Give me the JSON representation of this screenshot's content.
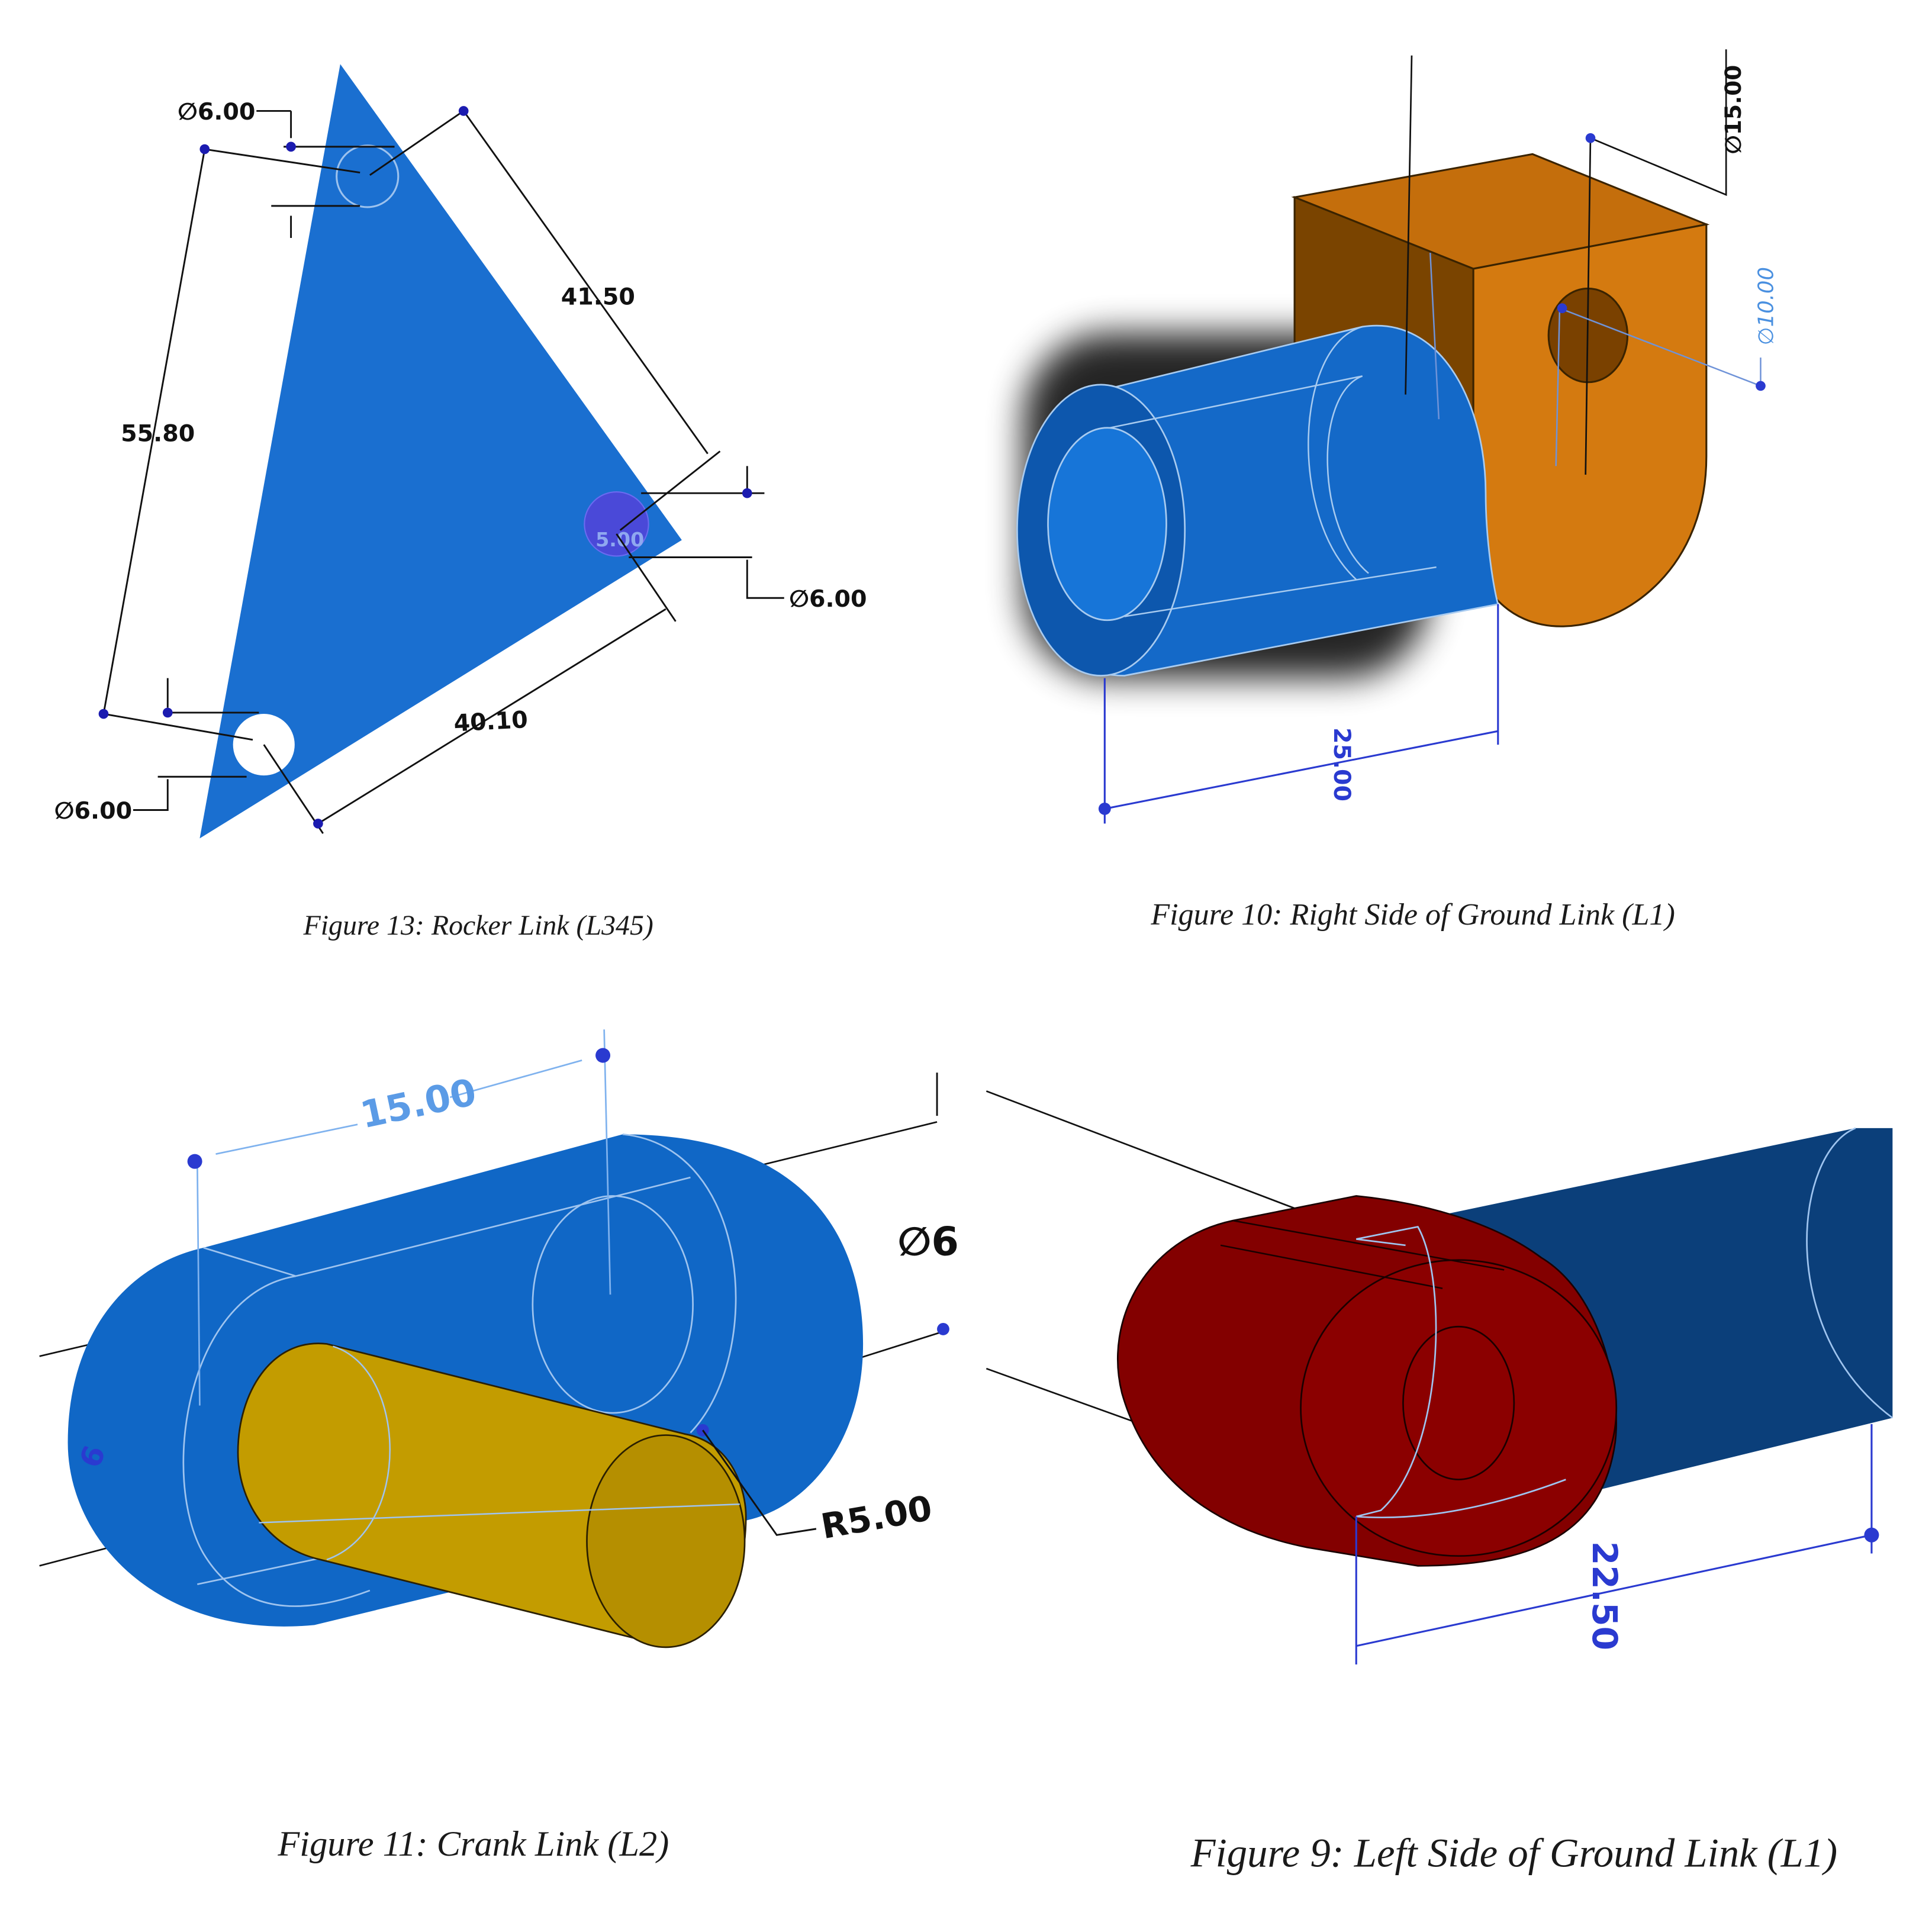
{
  "figures": [
    {
      "caption": "Figure 13: Rocker Link (L345)",
      "dims": {
        "hole_top": "∅6.00",
        "side_right": "41.50",
        "side_left": "55.80",
        "hole_right": "∅6.00",
        "side_bottom": "40.10",
        "hole_bottom": "∅6.00",
        "hole_label": "5.00"
      },
      "colors": {
        "body": "#1a6fd0",
        "hole_fill": "#4a49d8"
      }
    },
    {
      "caption": "Figure 10: Right Side of Ground Link (L1)",
      "dims": {
        "diameter_top": "∅15.00",
        "diameter_hole": "∅10.00",
        "length": "25.00"
      },
      "colors": {
        "block": "#d47a10",
        "cylinder": "#1469c8"
      }
    },
    {
      "caption": "Figure 11: Crank Link (L2)",
      "dims": {
        "center_distance": "15.00",
        "diameter_partial": "∅6",
        "radius": "R5.00",
        "left_partial": "6"
      },
      "colors": {
        "body": "#1067c6",
        "pin": "#c39c00"
      }
    },
    {
      "caption": "Figure 9: Left Side of Ground Link (L1)",
      "dims": {
        "length": "22.50"
      },
      "colors": {
        "block": "#830000",
        "cylinder": "#0b3f7a"
      }
    }
  ]
}
